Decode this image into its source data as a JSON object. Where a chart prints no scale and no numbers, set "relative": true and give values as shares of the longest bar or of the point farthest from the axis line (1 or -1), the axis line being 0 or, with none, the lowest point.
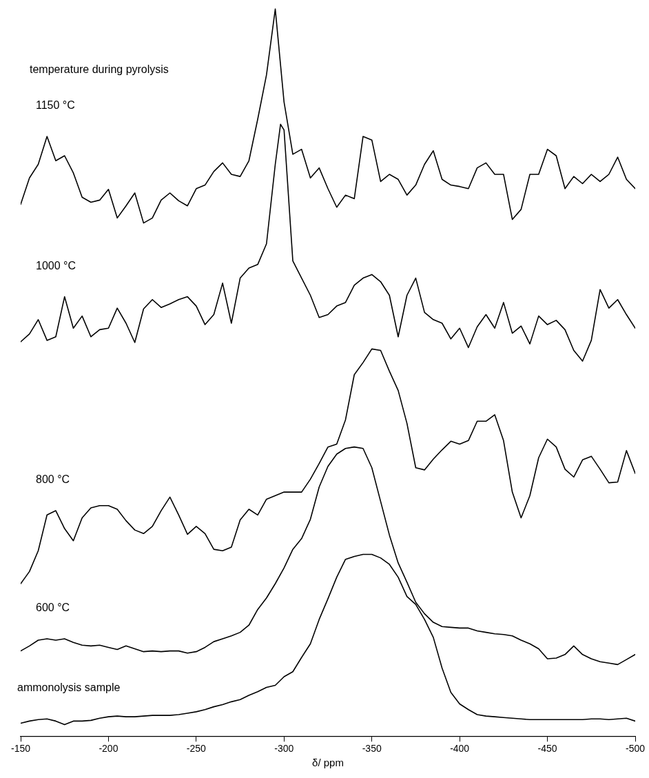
{
  "chart_data": {
    "type": "line",
    "relative": true,
    "xlabel": "δ/ ppm",
    "annotations": [
      "temperature during pyrolysis"
    ],
    "x": [
      -150,
      -155,
      -160,
      -165,
      -170,
      -175,
      -180,
      -185,
      -190,
      -195,
      -200,
      -205,
      -210,
      -215,
      -220,
      -225,
      -230,
      -235,
      -240,
      -245,
      -250,
      -255,
      -260,
      -265,
      -270,
      -275,
      -280,
      -285,
      -290,
      -295,
      -300,
      -305,
      -310,
      -315,
      -320,
      -325,
      -330,
      -335,
      -340,
      -345,
      -350,
      -355,
      -360,
      -365,
      -370,
      -375,
      -380,
      -385,
      -390,
      -395,
      -400,
      -405,
      -410,
      -415,
      -420,
      -425,
      -430,
      -435,
      -440,
      -445,
      -450,
      -455,
      -460,
      -465,
      -470,
      -475,
      -480,
      -485,
      -490,
      -495,
      -500
    ],
    "xlim": [
      -150,
      -500
    ],
    "xticks": [
      -150,
      -200,
      -250,
      -300,
      -350,
      -400,
      -450,
      -500
    ],
    "tick_labels": "x",
    "grid": false,
    "legend": false,
    "marker": "none",
    "line_style": "solid",
    "series": [
      {
        "name": "1150 °C",
        "color": "#000000",
        "values": [
          0.727,
          0.764,
          0.783,
          0.822,
          0.788,
          0.795,
          0.771,
          0.737,
          0.73,
          0.733,
          0.748,
          0.708,
          0.725,
          0.743,
          0.701,
          0.708,
          0.733,
          0.743,
          0.732,
          0.725,
          0.749,
          0.754,
          0.773,
          0.785,
          0.769,
          0.766,
          0.788,
          0.846,
          0.908,
          1.0,
          0.87,
          0.797,
          0.804,
          0.764,
          0.778,
          0.749,
          0.723,
          0.74,
          0.735,
          0.822,
          0.817,
          0.759,
          0.769,
          0.762,
          0.74,
          0.754,
          0.783,
          0.802,
          0.762,
          0.754,
          0.752,
          0.749,
          0.778,
          0.785,
          0.769,
          0.769,
          0.706,
          0.72,
          0.769,
          0.769,
          0.804,
          0.795,
          0.749,
          0.766,
          0.756,
          0.769,
          0.759,
          0.769,
          0.793,
          0.762,
          0.749
        ]
      },
      {
        "name": "1000 °C",
        "color": "#000000",
        "x": [
          -150,
          -155,
          -160,
          -165,
          -170,
          -175,
          -180,
          -185,
          -190,
          -195,
          -200,
          -205,
          -210,
          -215,
          -220,
          -225,
          -230,
          -235,
          -240,
          -245,
          -250,
          -255,
          -260,
          -265,
          -270,
          -275,
          -280,
          -285,
          -290,
          -295,
          -298,
          -300,
          -305,
          -310,
          -315,
          -320,
          -325,
          -330,
          -335,
          -340,
          -345,
          -350,
          -355,
          -360,
          -365,
          -370,
          -375,
          -380,
          -385,
          -390,
          -395,
          -400,
          -405,
          -410,
          -415,
          -420,
          -425,
          -430,
          -435,
          -440,
          -445,
          -450,
          -455,
          -460,
          -465,
          -470,
          -475,
          -480,
          -485,
          -490,
          -495,
          -500
        ],
        "values": [
          0.535,
          0.546,
          0.566,
          0.537,
          0.542,
          0.598,
          0.554,
          0.571,
          0.542,
          0.552,
          0.554,
          0.582,
          0.561,
          0.534,
          0.581,
          0.594,
          0.583,
          0.588,
          0.594,
          0.598,
          0.585,
          0.559,
          0.573,
          0.617,
          0.561,
          0.624,
          0.638,
          0.643,
          0.672,
          0.783,
          0.839,
          0.831,
          0.648,
          0.624,
          0.6,
          0.569,
          0.573,
          0.585,
          0.59,
          0.614,
          0.624,
          0.629,
          0.619,
          0.6,
          0.542,
          0.6,
          0.624,
          0.576,
          0.566,
          0.561,
          0.539,
          0.554,
          0.527,
          0.556,
          0.573,
          0.554,
          0.59,
          0.547,
          0.557,
          0.532,
          0.571,
          0.559,
          0.565,
          0.552,
          0.523,
          0.508,
          0.537,
          0.608,
          0.582,
          0.594,
          0.573,
          0.554
        ]
      },
      {
        "name": "800 °C",
        "color": "#000000",
        "values": [
          0.197,
          0.214,
          0.243,
          0.293,
          0.299,
          0.274,
          0.257,
          0.289,
          0.303,
          0.306,
          0.306,
          0.301,
          0.285,
          0.272,
          0.267,
          0.277,
          0.299,
          0.318,
          0.293,
          0.266,
          0.277,
          0.267,
          0.245,
          0.243,
          0.248,
          0.286,
          0.301,
          0.293,
          0.315,
          0.32,
          0.325,
          0.325,
          0.325,
          0.343,
          0.365,
          0.388,
          0.392,
          0.426,
          0.489,
          0.506,
          0.525,
          0.523,
          0.494,
          0.467,
          0.421,
          0.359,
          0.356,
          0.371,
          0.384,
          0.396,
          0.392,
          0.397,
          0.424,
          0.424,
          0.433,
          0.397,
          0.325,
          0.289,
          0.32,
          0.373,
          0.399,
          0.388,
          0.357,
          0.346,
          0.37,
          0.375,
          0.357,
          0.338,
          0.339,
          0.383,
          0.351
        ]
      },
      {
        "name": "600 °C",
        "color": "#000000",
        "values": [
          0.103,
          0.11,
          0.118,
          0.12,
          0.118,
          0.12,
          0.115,
          0.111,
          0.11,
          0.111,
          0.108,
          0.105,
          0.11,
          0.106,
          0.102,
          0.103,
          0.102,
          0.103,
          0.103,
          0.1,
          0.102,
          0.108,
          0.116,
          0.12,
          0.124,
          0.129,
          0.139,
          0.161,
          0.177,
          0.197,
          0.219,
          0.245,
          0.26,
          0.287,
          0.332,
          0.361,
          0.378,
          0.386,
          0.388,
          0.386,
          0.359,
          0.312,
          0.265,
          0.226,
          0.199,
          0.171,
          0.155,
          0.143,
          0.137,
          0.136,
          0.135,
          0.135,
          0.131,
          0.129,
          0.127,
          0.126,
          0.124,
          0.118,
          0.113,
          0.106,
          0.092,
          0.093,
          0.098,
          0.11,
          0.098,
          0.092,
          0.088,
          0.086,
          0.084,
          0.091,
          0.098
        ]
      },
      {
        "name": "ammonolysis sample",
        "color": "#000000",
        "values": [
          0.002,
          0.005,
          0.007,
          0.008,
          0.005,
          0,
          0.005,
          0.005,
          0.006,
          0.009,
          0.011,
          0.012,
          0.011,
          0.011,
          0.012,
          0.013,
          0.013,
          0.013,
          0.014,
          0.016,
          0.018,
          0.021,
          0.025,
          0.028,
          0.032,
          0.035,
          0.041,
          0.046,
          0.052,
          0.055,
          0.067,
          0.074,
          0.094,
          0.113,
          0.147,
          0.176,
          0.206,
          0.231,
          0.235,
          0.238,
          0.238,
          0.233,
          0.224,
          0.206,
          0.179,
          0.168,
          0.147,
          0.122,
          0.079,
          0.045,
          0.029,
          0.021,
          0.014,
          0.012,
          0.011,
          0.01,
          0.009,
          0.008,
          0.007,
          0.007,
          0.007,
          0.007,
          0.007,
          0.007,
          0.007,
          0.008,
          0.008,
          0.007,
          0.008,
          0.009,
          0.005
        ]
      }
    ]
  }
}
